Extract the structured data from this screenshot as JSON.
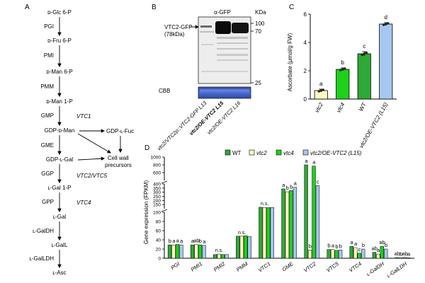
{
  "panel_letters": {
    "a": "A",
    "b": "B",
    "c": "C",
    "d": "D"
  },
  "pathway": {
    "nodes": [
      "D-Glc 6-P",
      "D-Fru 6-P",
      "D-Man 6-P",
      "D-Man 1-P",
      "GDP-D-Man",
      "GDP-L-Gal",
      "L-Gal 1-P",
      "L-Gal",
      "L-GalL",
      "L-Asc"
    ],
    "nodes_display": [
      "ᴅ-Glc 6-P",
      "ᴅ-Fru 6-P",
      "ᴅ-Man 6-P",
      "ᴅ-Man 1-P",
      "GDP-ᴅ-Man",
      "GDP-ʟ-Gal",
      "ʟ-Gal 1-P",
      "ʟ-Gal",
      "ʟ-GalL",
      "ʟ-Asc"
    ],
    "enzymes": [
      "PGI",
      "PMI",
      "PMM",
      "GMP",
      "GME",
      "GGP",
      "GPP",
      "ʟ-GalDH",
      "ʟ-GalLDH"
    ],
    "genes": {
      "gmp": "VTC1",
      "ggp": "VTC2/VTC5",
      "gpp": "VTC4"
    },
    "side_product": "GDP-ʟ-Fuc",
    "sink_line1": "Cell wall",
    "sink_line2": "precursors"
  },
  "blot": {
    "title": "α-GFP",
    "kda_label": "KDa",
    "band_label_line1": "VTC2-GFP",
    "band_label_line2": "(78kDa)",
    "markers": [
      "100",
      "70",
      "25"
    ],
    "stain_label": "CBB",
    "lanes": [
      "vtc2/VTC2p::VTC2-GFP L13",
      "vtc2/OE-VTC2 L15",
      "vtc2/OE-VTC2 L16"
    ]
  },
  "chart_data": [
    {
      "type": "bar",
      "panel": "C",
      "ylabel": "Ascorbate (μmol/g FW)",
      "ylim": [
        0,
        6
      ],
      "yticks": [
        0,
        2,
        4,
        6
      ],
      "categories": [
        "vtc2",
        "vtc4",
        "WT",
        "vtc2/OE-VTC2 (L15)"
      ],
      "values": [
        0.6,
        2.1,
        3.2,
        5.3
      ],
      "errors": [
        0.1,
        0.1,
        0.15,
        0.1
      ],
      "letters": [
        "a",
        "b",
        "c",
        "d"
      ],
      "colors": [
        "#fffbc0",
        "#1ed11a",
        "#2ea836",
        "#a6c8f0"
      ]
    },
    {
      "type": "bar",
      "panel": "D",
      "ylabel": "Gene expression (FPKM)",
      "axis_breaks": true,
      "yticks": [
        0,
        20,
        40,
        60,
        80,
        100,
        150,
        200,
        250,
        300,
        350,
        400,
        600,
        800,
        1000
      ],
      "series": [
        {
          "name": "WT",
          "color": "#2ea836",
          "values": [
            29,
            29,
            8,
            48,
            118,
            340,
            800,
            19,
            26,
            13,
            1.5
          ]
        },
        {
          "name": "vtc2",
          "color": "#fffbc0",
          "values": [
            29,
            30,
            9,
            48,
            116,
            305,
            18,
            19,
            23,
            9,
            1
          ]
        },
        {
          "name": "vtc4",
          "color": "#1ed11a",
          "values": [
            30,
            29,
            8,
            49,
            113,
            320,
            770,
            17,
            11,
            26,
            1.5
          ]
        },
        {
          "name": "vtc2/OE-VTC2 (L15)",
          "color": "#a6c8f0",
          "values": [
            29,
            28,
            8,
            47,
            115,
            360,
            380,
            18,
            20,
            20,
            1
          ]
        }
      ],
      "categories": [
        "PGI",
        "PMI1",
        "PMI2",
        "PMM",
        "VTC1",
        "GME",
        "VTC2",
        "VTC5",
        "VTC4",
        "L-GalDH",
        "L-GalLDH"
      ],
      "category_display": [
        "PGI",
        "PMI1",
        "PMI2",
        "PMM",
        "VTC1",
        "GME",
        "VTC2",
        "VTC5",
        "VTC4",
        "ʟ-GalDH",
        "ʟ-GalLDH"
      ],
      "letters": [
        [
          "b",
          "a",
          "a",
          "a"
        ],
        [
          "a",
          "ab",
          "b",
          "a"
        ],
        [
          "",
          "n.s.",
          "",
          ""
        ],
        [
          "",
          "n.s.",
          "",
          ""
        ],
        [
          "",
          "n.s.",
          "",
          ""
        ],
        [
          "a",
          "b",
          "b",
          "a"
        ],
        [
          "a",
          "b",
          "a",
          "c"
        ],
        [
          "b",
          "a",
          "b",
          "b"
        ],
        [
          "a",
          "a",
          "c",
          "b"
        ],
        [
          "ab",
          "a",
          "ab",
          "b"
        ],
        [
          "ab",
          "b",
          "ab",
          "a"
        ]
      ]
    }
  ]
}
